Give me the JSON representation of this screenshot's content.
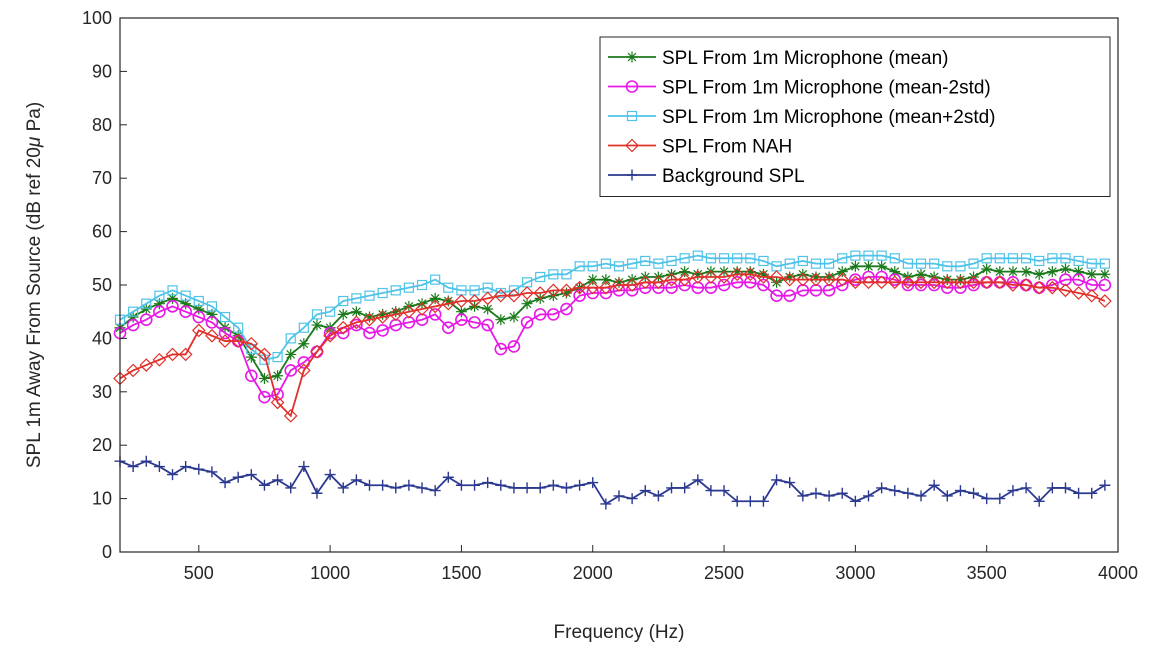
{
  "chart_data": {
    "type": "line",
    "title": "",
    "xlabel": "Frequency (Hz)",
    "ylabel": "SPL 1m Away From Source (dB ref 20",
    "ylabel_symbol": "μ",
    "ylabel_tail": " Pa)",
    "xlim": [
      200,
      4000
    ],
    "ylim": [
      0,
      100
    ],
    "xticks": [
      500,
      1000,
      1500,
      2000,
      2500,
      3000,
      3500,
      4000
    ],
    "yticks": [
      0,
      10,
      20,
      30,
      40,
      50,
      60,
      70,
      80,
      90,
      100
    ],
    "grid": false,
    "legend_position": "top-right",
    "x": [
      200,
      250,
      300,
      350,
      400,
      450,
      500,
      550,
      600,
      650,
      700,
      750,
      800,
      850,
      900,
      950,
      1000,
      1050,
      1100,
      1150,
      1200,
      1250,
      1300,
      1350,
      1400,
      1450,
      1500,
      1550,
      1600,
      1650,
      1700,
      1750,
      1800,
      1850,
      1900,
      1950,
      2000,
      2050,
      2100,
      2150,
      2200,
      2250,
      2300,
      2350,
      2400,
      2450,
      2500,
      2550,
      2600,
      2650,
      2700,
      2750,
      2800,
      2850,
      2900,
      2950,
      3000,
      3050,
      3100,
      3150,
      3200,
      3250,
      3300,
      3350,
      3400,
      3450,
      3500,
      3550,
      3600,
      3650,
      3700,
      3750,
      3800,
      3850,
      3900,
      3950
    ],
    "series": [
      {
        "name": "SPL From 1m Microphone (mean)",
        "color": "#1b7a1b",
        "marker": "asterisk",
        "values": [
          42,
          44,
          45.5,
          46.5,
          47.5,
          46.5,
          45.5,
          44.5,
          42,
          40.5,
          36.5,
          32.5,
          33,
          37,
          39,
          42.5,
          42,
          44.5,
          45,
          44,
          44.5,
          45,
          46,
          46.5,
          47.5,
          47,
          45,
          46,
          45.5,
          43.5,
          44,
          46.5,
          47.5,
          48,
          48.5,
          49.5,
          51,
          51,
          50.5,
          51,
          51.5,
          51.5,
          52,
          52.5,
          52,
          52.5,
          52.5,
          52.5,
          52.5,
          52,
          50.5,
          51.5,
          52,
          51.5,
          51.5,
          52.5,
          53.5,
          53.5,
          53.5,
          52.5,
          51.5,
          52,
          51.5,
          51,
          51,
          51.5,
          53,
          52.5,
          52.5,
          52.5,
          52,
          52.5,
          53,
          52.5,
          52,
          52
        ]
      },
      {
        "name": "SPL From 1m Microphone (mean-2std)",
        "color": "#e619e6",
        "marker": "circle",
        "values": [
          41,
          42.5,
          43.5,
          45,
          46,
          45,
          44,
          43,
          41,
          39.5,
          33,
          29,
          29.5,
          34,
          35.5,
          37.5,
          41,
          41,
          42.5,
          41,
          41.5,
          42.5,
          43,
          43.5,
          44.5,
          42,
          43.5,
          43,
          42.5,
          38,
          38.5,
          43,
          44.5,
          44.5,
          45.5,
          48,
          48.5,
          48.5,
          49,
          49,
          49.5,
          49.5,
          49.5,
          50,
          49.5,
          49.5,
          50,
          50.5,
          50.5,
          50,
          48,
          48,
          49,
          49,
          49,
          50,
          51,
          51.5,
          51.5,
          51,
          50,
          50,
          50,
          49.5,
          49.5,
          50,
          50.5,
          50.5,
          50.5,
          50,
          49.5,
          50,
          51,
          51,
          50,
          50
        ]
      },
      {
        "name": "SPL From 1m Microphone (mean+2std)",
        "color": "#4fc3e8",
        "marker": "square",
        "values": [
          43.5,
          45,
          46.5,
          48,
          49,
          48,
          47,
          46,
          44,
          42,
          38,
          36,
          36.5,
          40,
          42,
          44.5,
          45,
          47,
          47.5,
          48,
          48.5,
          49,
          49.5,
          50,
          51,
          49.5,
          49,
          49,
          49.5,
          48.5,
          49,
          50.5,
          51.5,
          52,
          52,
          53.5,
          53.5,
          54,
          53.5,
          54,
          54.5,
          54,
          54.5,
          55,
          55.5,
          55,
          55,
          55,
          55,
          54.5,
          53.5,
          54,
          54.5,
          54,
          54,
          55,
          55.5,
          55.5,
          55.5,
          55,
          54,
          54,
          54,
          53.5,
          53.5,
          54,
          55,
          55,
          55,
          55,
          54.5,
          55,
          55,
          54.5,
          54,
          54
        ]
      },
      {
        "name": "SPL From NAH",
        "color": "#e0302a",
        "marker": "diamond",
        "values": [
          32.5,
          34,
          35,
          36,
          37,
          37,
          41.5,
          40.5,
          39.5,
          39.5,
          39,
          37,
          28,
          25.5,
          34,
          37.5,
          40.5,
          42,
          43,
          43.5,
          44,
          44.5,
          45,
          45.5,
          46,
          46.5,
          47,
          47,
          47.5,
          48,
          48,
          48.5,
          48.5,
          49,
          49,
          49.5,
          49.5,
          49.5,
          50,
          50,
          50.5,
          50.5,
          51,
          51,
          51.5,
          51.5,
          51.5,
          52,
          52,
          51.5,
          51.5,
          51,
          51,
          51,
          51,
          51,
          50.5,
          50.5,
          50.5,
          50.5,
          50.5,
          50.5,
          50.5,
          50.5,
          50.5,
          50.5,
          50.5,
          50.5,
          50,
          50,
          49.5,
          49.5,
          49,
          48.5,
          48,
          47
        ]
      },
      {
        "name": "Background SPL",
        "color": "#2b3990",
        "marker": "plus",
        "values": [
          17,
          16,
          17,
          16,
          14.5,
          16,
          15.5,
          15,
          13,
          14,
          14.5,
          12.5,
          13.5,
          12,
          16,
          11,
          14.5,
          12,
          13.5,
          12.5,
          12.5,
          12,
          12.5,
          12,
          11.5,
          14,
          12.5,
          12.5,
          13,
          12.5,
          12,
          12,
          12,
          12.5,
          12,
          12.5,
          13,
          9,
          10.5,
          10,
          11.5,
          10.5,
          12,
          12,
          13.5,
          11.5,
          11.5,
          9.5,
          9.5,
          9.5,
          13.5,
          13,
          10.5,
          11,
          10.5,
          11,
          9.5,
          10.5,
          12,
          11.5,
          11,
          10.5,
          12.5,
          10.5,
          11.5,
          11,
          10,
          10,
          11.5,
          12,
          9.5,
          12,
          12,
          11,
          11,
          12.5
        ]
      }
    ]
  }
}
